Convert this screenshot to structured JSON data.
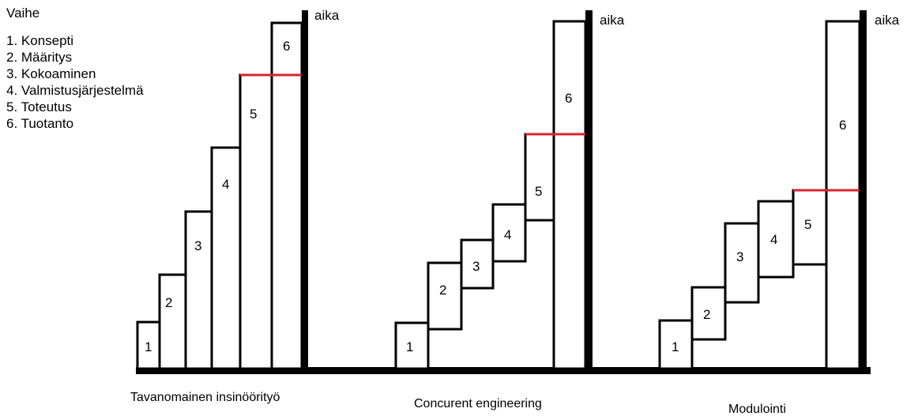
{
  "legend": {
    "title": "Vaihe",
    "items": [
      "1. Konsepti",
      "2. Määritys",
      "3. Kokoaminen",
      "4. Valmistusjärjestelmä",
      "5. Toteutus",
      "6. Tuotanto"
    ]
  },
  "axis_label": "aika",
  "colors": {
    "line": "#000000",
    "marker": "#d9232e",
    "box_fill": "#ffffff"
  },
  "scenarios": [
    {
      "caption": "Tavanomainen insinöörityö",
      "labels": [
        "1",
        "2",
        "3",
        "4",
        "5",
        "6"
      ]
    },
    {
      "caption": "Concurent engineering",
      "labels": [
        "1",
        "2",
        "3",
        "4",
        "5",
        "6"
      ]
    },
    {
      "caption": "Modulointi",
      "labels": [
        "1",
        "2",
        "3",
        "4",
        "5",
        "6"
      ]
    }
  ]
}
